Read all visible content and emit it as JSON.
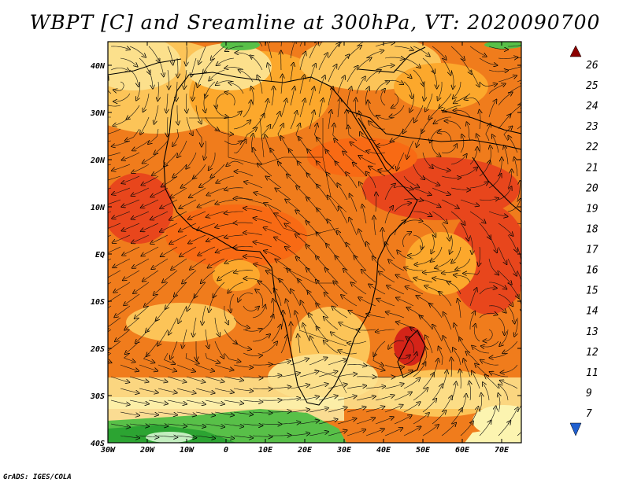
{
  "title": "WBPT [C] and Sreamline at 300hPa, VT: 2020090700",
  "credit": "GrADS: IGES/COLA",
  "map": {
    "lon_range": [
      -30,
      75
    ],
    "lat_range": [
      -40,
      45
    ],
    "lon_ticks": [
      {
        "value": -30,
        "label": "30W"
      },
      {
        "value": -20,
        "label": "20W"
      },
      {
        "value": -10,
        "label": "10W"
      },
      {
        "value": 0,
        "label": "0"
      },
      {
        "value": 10,
        "label": "10E"
      },
      {
        "value": 20,
        "label": "20E"
      },
      {
        "value": 30,
        "label": "30E"
      },
      {
        "value": 40,
        "label": "40E"
      },
      {
        "value": 50,
        "label": "50E"
      },
      {
        "value": 60,
        "label": "60E"
      },
      {
        "value": 70,
        "label": "70E"
      }
    ],
    "lat_ticks": [
      {
        "value": 40,
        "label": "40N"
      },
      {
        "value": 30,
        "label": "30N"
      },
      {
        "value": 20,
        "label": "20N"
      },
      {
        "value": 10,
        "label": "10N"
      },
      {
        "value": 0,
        "label": "EQ"
      },
      {
        "value": -10,
        "label": "10S"
      },
      {
        "value": -20,
        "label": "20S"
      },
      {
        "value": -30,
        "label": "30S"
      },
      {
        "value": -40,
        "label": "40S"
      }
    ],
    "vortices": [
      {
        "lon": -27,
        "lat": 36,
        "dir": 1
      },
      {
        "lon": 0,
        "lat": 32,
        "dir": -1
      },
      {
        "lon": 42,
        "lat": 33,
        "dir": 1
      },
      {
        "lon": 55,
        "lat": 24,
        "dir": -1
      },
      {
        "lon": 47,
        "lat": 2,
        "dir": 1
      },
      {
        "lon": 6,
        "lat": -10,
        "dir": -1
      },
      {
        "lon": 66,
        "lat": -17,
        "dir": 1
      },
      {
        "lon": 45,
        "lat": -20,
        "dir": -1
      }
    ]
  },
  "colorbar": {
    "colors": [
      "#2060d0",
      "#3c8ce8",
      "#5ca8f0",
      "#88c4f8",
      "#b4dcfc",
      "#e4f6fc",
      "#c4eec0",
      "#90dc88",
      "#58c048",
      "#2ca432",
      "#fcf4b0",
      "#fce08c",
      "#fcc458",
      "#fca82c",
      "#fc8c1c",
      "#f86a14",
      "#e8461c",
      "#d42418",
      "#b40808",
      "#8c0000"
    ],
    "labels": [
      "7",
      "9",
      "11",
      "12",
      "13",
      "14",
      "15",
      "16",
      "17",
      "18",
      "19",
      "20",
      "21",
      "22",
      "23",
      "24",
      "25",
      "26"
    ]
  }
}
